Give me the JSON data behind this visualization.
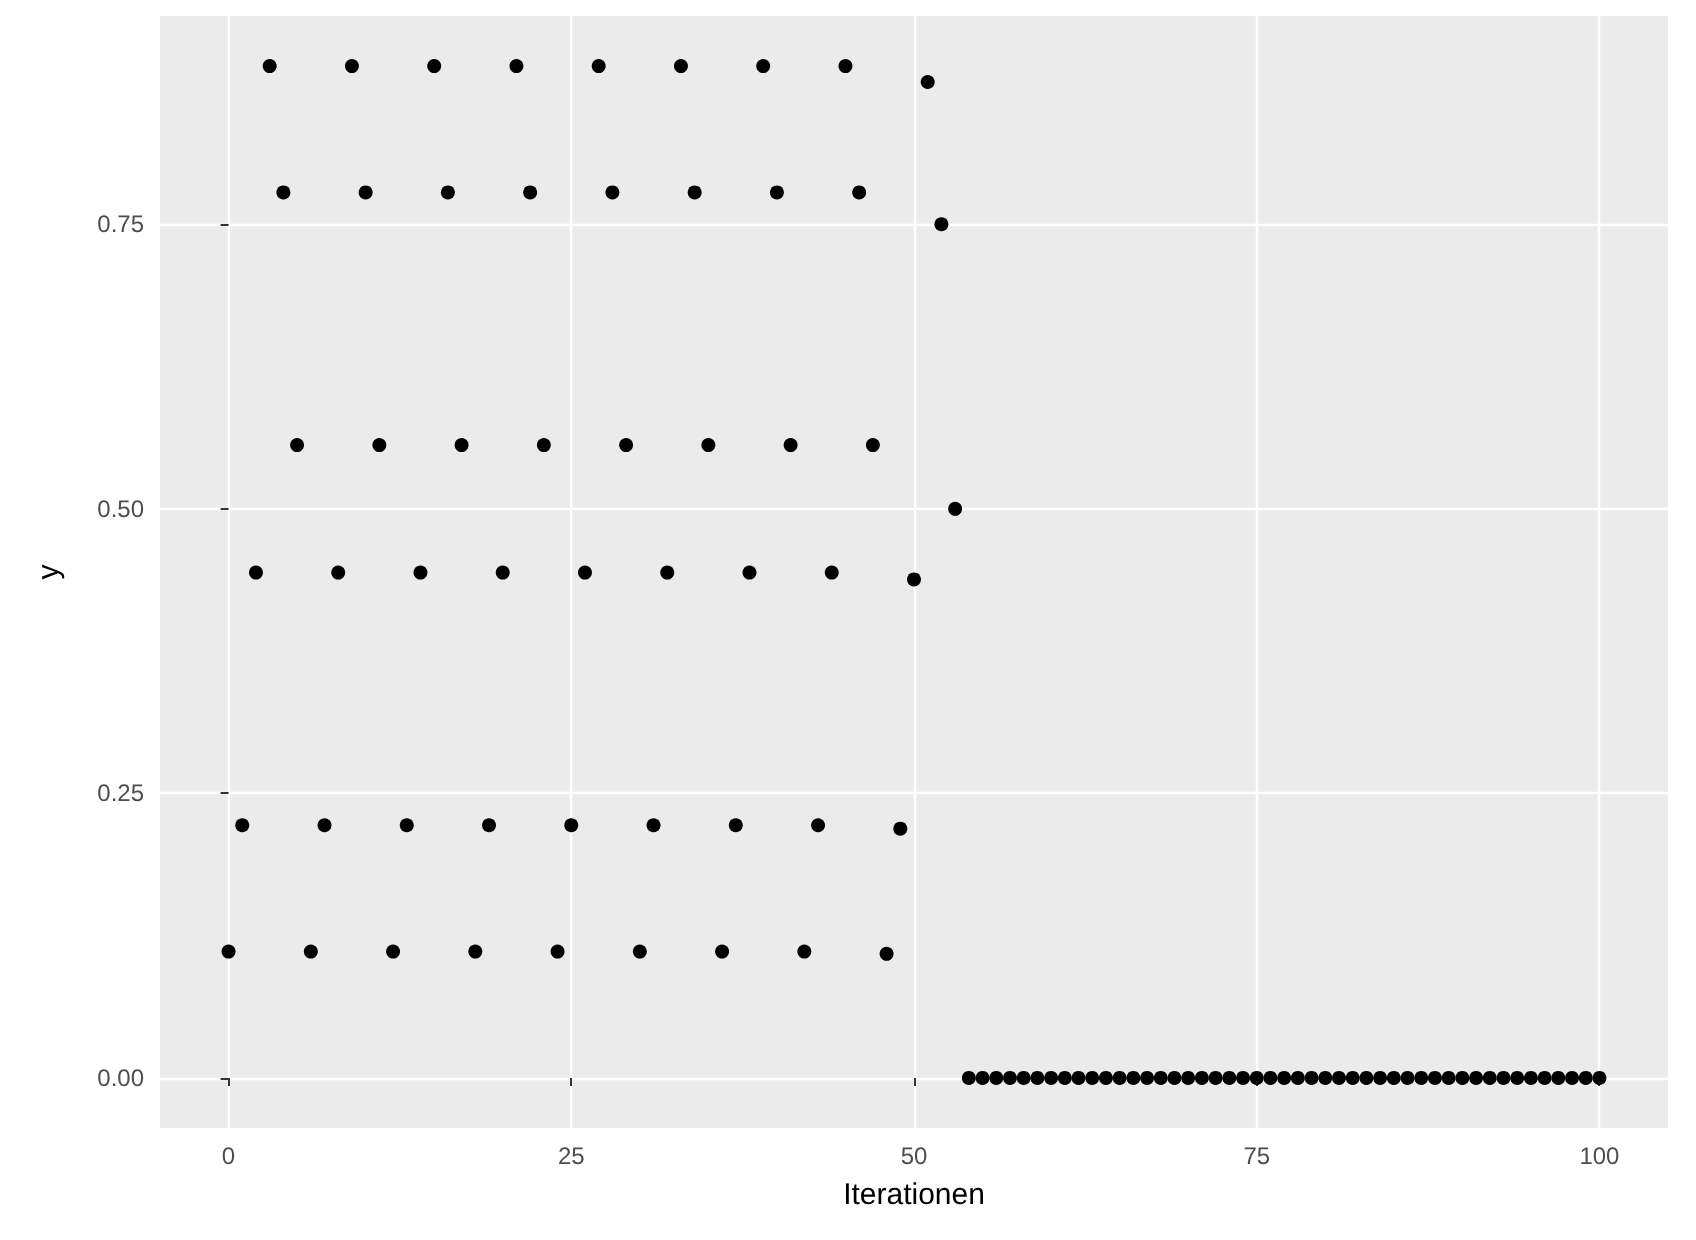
{
  "chart_data": {
    "type": "scatter",
    "xlabel": "Iterationen",
    "ylabel": "y",
    "x": [
      0,
      1,
      2,
      3,
      4,
      5,
      6,
      7,
      8,
      9,
      10,
      11,
      12,
      13,
      14,
      15,
      16,
      17,
      18,
      19,
      20,
      21,
      22,
      23,
      24,
      25,
      26,
      27,
      28,
      29,
      30,
      31,
      32,
      33,
      34,
      35,
      36,
      37,
      38,
      39,
      40,
      41,
      42,
      43,
      44,
      45,
      46,
      47,
      48,
      49,
      50,
      51,
      52,
      53,
      54,
      55,
      56,
      57,
      58,
      59,
      60,
      61,
      62,
      63,
      64,
      65,
      66,
      67,
      68,
      69,
      70,
      71,
      72,
      73,
      74,
      75,
      76,
      77,
      78,
      79,
      80,
      81,
      82,
      83,
      84,
      85,
      86,
      87,
      88,
      89,
      90,
      91,
      92,
      93,
      94,
      95,
      96,
      97,
      98,
      99,
      100
    ],
    "series": [
      {
        "color": "#000000",
        "values": [
          0.111,
          0.222,
          0.444,
          0.889,
          0.778,
          0.556,
          0.111,
          0.222,
          0.444,
          0.889,
          0.778,
          0.556,
          0.111,
          0.222,
          0.444,
          0.889,
          0.778,
          0.556,
          0.111,
          0.222,
          0.444,
          0.889,
          0.778,
          0.556,
          0.111,
          0.222,
          0.444,
          0.889,
          0.778,
          0.556,
          0.111,
          0.222,
          0.444,
          0.889,
          0.778,
          0.556,
          0.111,
          0.222,
          0.444,
          0.889,
          0.778,
          0.556,
          0.111,
          0.222,
          0.444,
          0.889,
          0.778,
          0.556,
          0.109,
          0.219,
          0.438,
          0.875,
          0.75,
          0.5,
          0,
          0,
          0,
          0,
          0,
          0,
          0,
          0,
          0,
          0,
          0,
          0,
          0,
          0,
          0,
          0,
          0,
          0,
          0,
          0,
          0,
          0,
          0,
          0,
          0,
          0,
          0,
          0,
          0,
          0,
          0,
          0,
          0,
          0,
          0,
          0,
          0,
          0,
          0,
          0,
          0,
          0,
          0,
          0,
          0,
          0,
          0
        ]
      }
    ],
    "xlim": [
      -5,
      105
    ],
    "xticks": [
      0,
      25,
      50,
      75,
      100
    ],
    "ylim": [
      -0.044,
      0.933
    ],
    "yticks": [
      {
        "value": 0,
        "label": "0.00"
      },
      {
        "value": 0.25,
        "label": "0.25"
      },
      {
        "value": 0.5,
        "label": "0.50"
      },
      {
        "value": 0.75,
        "label": "0.75"
      }
    ],
    "grid": true,
    "marker": "circle"
  }
}
